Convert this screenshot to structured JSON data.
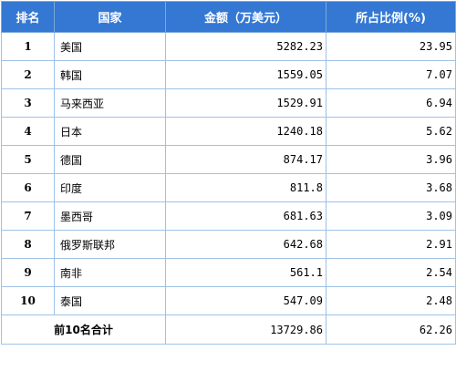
{
  "colors": {
    "header_bg": "#3478d4",
    "header_text": "#ffffff",
    "grid_line": "#9ec2e6",
    "cell_bg": "#ffffff"
  },
  "table": {
    "headers": [
      "排名",
      "国家",
      "金额（万美元）",
      "所占比例(%)"
    ],
    "rows": [
      {
        "rank": "1",
        "country": "美国",
        "amount": "5282.23",
        "share": "23.95"
      },
      {
        "rank": "2",
        "country": "韩国",
        "amount": "1559.05",
        "share": "7.07"
      },
      {
        "rank": "3",
        "country": "马来西亚",
        "amount": "1529.91",
        "share": "6.94"
      },
      {
        "rank": "4",
        "country": "日本",
        "amount": "1240.18",
        "share": "5.62"
      },
      {
        "rank": "5",
        "country": "德国",
        "amount": "874.17",
        "share": "3.96"
      },
      {
        "rank": "6",
        "country": "印度",
        "amount": "811.8",
        "share": "3.68"
      },
      {
        "rank": "7",
        "country": "墨西哥",
        "amount": "681.63",
        "share": "3.09"
      },
      {
        "rank": "8",
        "country": "俄罗斯联邦",
        "amount": "642.68",
        "share": "2.91"
      },
      {
        "rank": "9",
        "country": "南非",
        "amount": "561.1",
        "share": "2.54"
      },
      {
        "rank": "10",
        "country": "泰国",
        "amount": "547.09",
        "share": "2.48"
      }
    ],
    "total": {
      "label": "前10名合计",
      "amount": "13729.86",
      "share": "62.26"
    }
  }
}
